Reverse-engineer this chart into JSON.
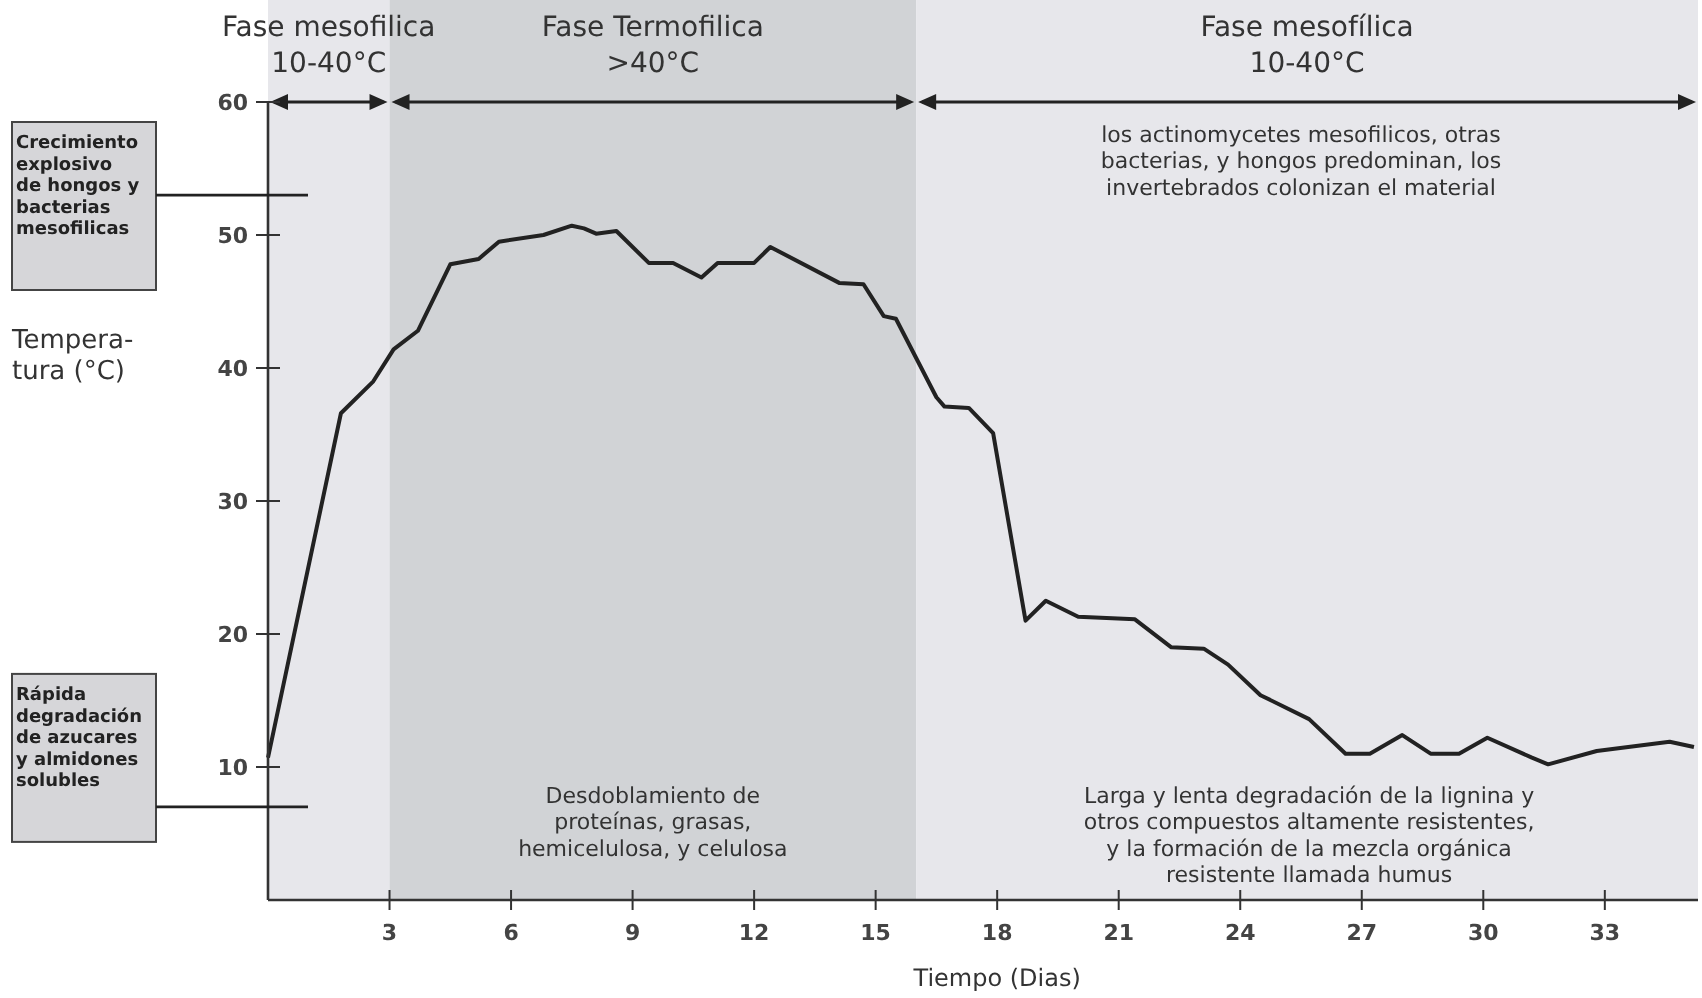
{
  "chart_data": {
    "type": "line",
    "xlabel": "Tiempo  (Dias)",
    "ylabel": "Tempera-\ntura (°C)",
    "xlim": [
      0,
      35.3
    ],
    "ylim": [
      0,
      60
    ],
    "xticks": [
      3,
      6,
      9,
      12,
      15,
      18,
      21,
      24,
      27,
      30,
      33
    ],
    "yticks": [
      10,
      20,
      30,
      40,
      50,
      60
    ],
    "x": [
      0,
      1.8,
      2.6,
      3.1,
      3.7,
      4.5,
      5.2,
      5.7,
      6.8,
      7.5,
      7.8,
      8.1,
      8.6,
      9.4,
      10,
      10.7,
      11.1,
      12,
      12.4,
      14.1,
      14.7,
      15.2,
      15.5,
      16.5,
      16.7,
      17.3,
      17.9,
      18.7,
      19.2,
      20,
      21.4,
      22.3,
      23.1,
      23.7,
      24.5,
      25.7,
      26.6,
      27.2,
      28,
      28.7,
      29.4,
      30.1,
      31.2,
      31.6,
      32.8,
      34.6,
      35.2
    ],
    "series": [
      {
        "color": "#222222",
        "values": [
          10.7,
          36.6,
          39,
          41.4,
          42.8,
          47.8,
          48.2,
          49.5,
          50,
          50.7,
          50.5,
          50.1,
          50.3,
          47.9,
          47.9,
          46.8,
          47.9,
          47.9,
          49.1,
          46.4,
          46.3,
          43.9,
          43.7,
          37.8,
          37.1,
          37,
          35.1,
          21,
          22.5,
          21.3,
          21.1,
          19,
          18.9,
          17.7,
          15.4,
          13.6,
          11,
          11,
          12.4,
          11,
          11,
          12.2,
          10.7,
          10.2,
          11.2,
          11.9,
          11.5
        ]
      }
    ],
    "bands": [
      {
        "axis": "x",
        "from": 0,
        "to": 3,
        "label": "Fase mesofilica\n10-40°C",
        "color": "#e7e7eb"
      },
      {
        "axis": "x",
        "from": 3,
        "to": 16,
        "label": "Fase Termofilica\n>40°C",
        "color": "#d1d3d6"
      },
      {
        "axis": "x",
        "from": 16,
        "to": 35.3,
        "label": "Fase mesofílica\n10-40°C",
        "color": "#e7e7eb"
      }
    ],
    "annotations": [
      "Crecimiento\nexplosivo\nde hongos y\nbacterias\nmesofilicas",
      "Rápida\ndegradación\nde azucares\ny almidones\nsolubles",
      "los actinomycetes mesofilicos, otras\nbacterias, y hongos predominan, los\ninvertebrados colonizan el material",
      "Desdoblamiento de\nproteínas, grasas,\nhemicelulosa, y celulosa",
      "Larga y lenta degradación de la lignina y\notros compuestos altamente resistentes,\ny la formación de la mezcla orgánica\nresistente llamada humus"
    ],
    "marker": "none",
    "line_style": "solid"
  }
}
